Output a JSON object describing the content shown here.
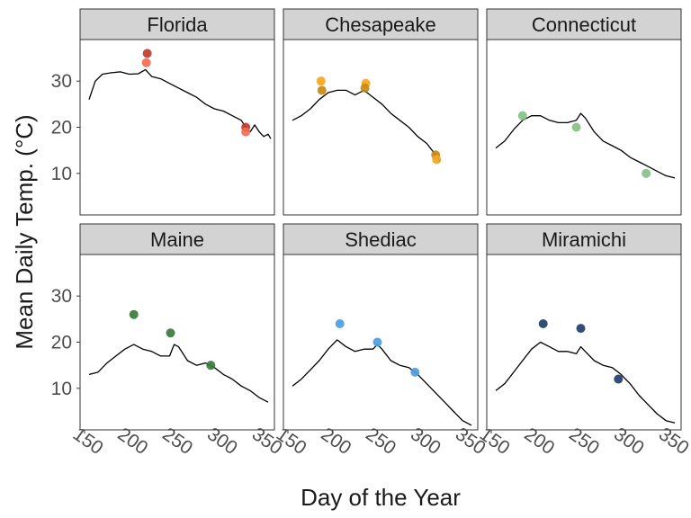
{
  "chart_data": {
    "type": "line",
    "xlabel": "Day of the Year",
    "ylabel": "Mean Daily Temp. (°C)",
    "xlim": [
      145,
      362
    ],
    "ylim": [
      1,
      39
    ],
    "x_ticks": [
      150,
      200,
      250,
      300,
      350
    ],
    "y_ticks": [
      10,
      20,
      30
    ],
    "grid": false,
    "facets": [
      {
        "name": "Florida",
        "color": "#e8563c",
        "line": [
          [
            155,
            26
          ],
          [
            162,
            30
          ],
          [
            170,
            31.5
          ],
          [
            180,
            31.8
          ],
          [
            190,
            32
          ],
          [
            200,
            31.5
          ],
          [
            210,
            31.6
          ],
          [
            218,
            32.5
          ],
          [
            225,
            31
          ],
          [
            235,
            30.5
          ],
          [
            245,
            29.5
          ],
          [
            255,
            28.5
          ],
          [
            265,
            27.5
          ],
          [
            275,
            26.5
          ],
          [
            285,
            25
          ],
          [
            295,
            24
          ],
          [
            305,
            23.5
          ],
          [
            315,
            22.5
          ],
          [
            325,
            21.5
          ],
          [
            330,
            20
          ],
          [
            335,
            19
          ],
          [
            340,
            20.5
          ],
          [
            345,
            19
          ],
          [
            350,
            18
          ],
          [
            355,
            18.5
          ],
          [
            358,
            17.5
          ]
        ],
        "points": [
          {
            "x": 220,
            "y": 36,
            "color": "#c0392b"
          },
          {
            "x": 219,
            "y": 34,
            "color": "#f26c4f"
          },
          {
            "x": 330,
            "y": 20,
            "color": "#c0392b"
          },
          {
            "x": 330,
            "y": 19,
            "color": "#f26c4f"
          }
        ]
      },
      {
        "name": "Chesapeake",
        "color": "#f5a623",
        "line": [
          [
            155,
            21.5
          ],
          [
            165,
            22.5
          ],
          [
            175,
            24
          ],
          [
            185,
            26
          ],
          [
            195,
            27.5
          ],
          [
            205,
            28
          ],
          [
            215,
            28
          ],
          [
            225,
            27
          ],
          [
            235,
            28
          ],
          [
            245,
            26.5
          ],
          [
            255,
            25
          ],
          [
            265,
            23
          ],
          [
            275,
            21.5
          ],
          [
            285,
            20
          ],
          [
            295,
            18
          ],
          [
            305,
            16.5
          ],
          [
            315,
            14
          ],
          [
            320,
            12.5
          ]
        ],
        "points": [
          {
            "x": 187,
            "y": 30,
            "color": "#f5a623"
          },
          {
            "x": 188,
            "y": 28,
            "color": "#c68a12"
          },
          {
            "x": 237,
            "y": 29.5,
            "color": "#f5a623"
          },
          {
            "x": 236,
            "y": 28.5,
            "color": "#c68a12"
          },
          {
            "x": 315,
            "y": 14,
            "color": "#c68a12"
          },
          {
            "x": 316,
            "y": 13,
            "color": "#f5a623"
          }
        ]
      },
      {
        "name": "Connecticut",
        "color": "#86c186",
        "line": [
          [
            155,
            15.5
          ],
          [
            165,
            17
          ],
          [
            175,
            19.5
          ],
          [
            185,
            21.5
          ],
          [
            195,
            22.5
          ],
          [
            205,
            22.5
          ],
          [
            215,
            21.5
          ],
          [
            225,
            21
          ],
          [
            235,
            21
          ],
          [
            245,
            21.5
          ],
          [
            250,
            23
          ],
          [
            255,
            22
          ],
          [
            265,
            19
          ],
          [
            275,
            17
          ],
          [
            285,
            16
          ],
          [
            295,
            15
          ],
          [
            305,
            13.5
          ],
          [
            315,
            12.5
          ],
          [
            325,
            11.5
          ],
          [
            335,
            10.5
          ],
          [
            345,
            9.5
          ],
          [
            355,
            9
          ]
        ],
        "points": [
          {
            "x": 185,
            "y": 22.5,
            "color": "#86c186"
          },
          {
            "x": 245,
            "y": 20,
            "color": "#86c186"
          },
          {
            "x": 323,
            "y": 10,
            "color": "#86c186"
          }
        ]
      },
      {
        "name": "Maine",
        "color": "#3b7a3b",
        "line": [
          [
            155,
            13
          ],
          [
            165,
            13.5
          ],
          [
            175,
            15.5
          ],
          [
            185,
            17
          ],
          [
            195,
            18.5
          ],
          [
            205,
            19.5
          ],
          [
            215,
            18.5
          ],
          [
            225,
            18
          ],
          [
            235,
            17
          ],
          [
            245,
            17
          ],
          [
            250,
            19.5
          ],
          [
            255,
            19
          ],
          [
            265,
            16
          ],
          [
            275,
            15
          ],
          [
            285,
            15.5
          ],
          [
            295,
            14.5
          ],
          [
            305,
            13
          ],
          [
            315,
            12
          ],
          [
            325,
            10.5
          ],
          [
            335,
            9.5
          ],
          [
            345,
            8
          ],
          [
            355,
            7
          ]
        ],
        "points": [
          {
            "x": 205,
            "y": 26,
            "color": "#3b7a3b"
          },
          {
            "x": 246,
            "y": 22,
            "color": "#3b7a3b"
          },
          {
            "x": 291,
            "y": 15,
            "color": "#3b7a3b"
          }
        ]
      },
      {
        "name": "Shediac",
        "color": "#4a9fe0",
        "line": [
          [
            155,
            10.5
          ],
          [
            165,
            12
          ],
          [
            175,
            14
          ],
          [
            185,
            16
          ],
          [
            195,
            18.5
          ],
          [
            205,
            20.5
          ],
          [
            215,
            19
          ],
          [
            225,
            18
          ],
          [
            235,
            18.5
          ],
          [
            245,
            18.5
          ],
          [
            250,
            19.5
          ],
          [
            255,
            18.5
          ],
          [
            265,
            16
          ],
          [
            275,
            15
          ],
          [
            285,
            14.5
          ],
          [
            295,
            13
          ],
          [
            305,
            11
          ],
          [
            315,
            9
          ],
          [
            325,
            7
          ],
          [
            335,
            5
          ],
          [
            345,
            3
          ],
          [
            355,
            2
          ]
        ],
        "points": [
          {
            "x": 208,
            "y": 24,
            "color": "#4a9fe0"
          },
          {
            "x": 250,
            "y": 20,
            "color": "#4a9fe0"
          },
          {
            "x": 292,
            "y": 13.5,
            "color": "#4a9fe0"
          }
        ]
      },
      {
        "name": "Miramichi",
        "color": "#1f3f6b",
        "line": [
          [
            155,
            9.5
          ],
          [
            165,
            11
          ],
          [
            175,
            13.5
          ],
          [
            185,
            16
          ],
          [
            195,
            18.5
          ],
          [
            205,
            20
          ],
          [
            215,
            19
          ],
          [
            225,
            18
          ],
          [
            235,
            18
          ],
          [
            245,
            17.5
          ],
          [
            250,
            19
          ],
          [
            255,
            18
          ],
          [
            265,
            16
          ],
          [
            275,
            15
          ],
          [
            285,
            14.5
          ],
          [
            295,
            13
          ],
          [
            305,
            11
          ],
          [
            315,
            8.5
          ],
          [
            325,
            6.5
          ],
          [
            335,
            4.5
          ],
          [
            345,
            3
          ],
          [
            355,
            2.5
          ]
        ],
        "points": [
          {
            "x": 208,
            "y": 24,
            "color": "#1f3f6b"
          },
          {
            "x": 250,
            "y": 23,
            "color": "#1f3f6b"
          },
          {
            "x": 292,
            "y": 12,
            "color": "#1f3f6b"
          }
        ]
      }
    ]
  }
}
